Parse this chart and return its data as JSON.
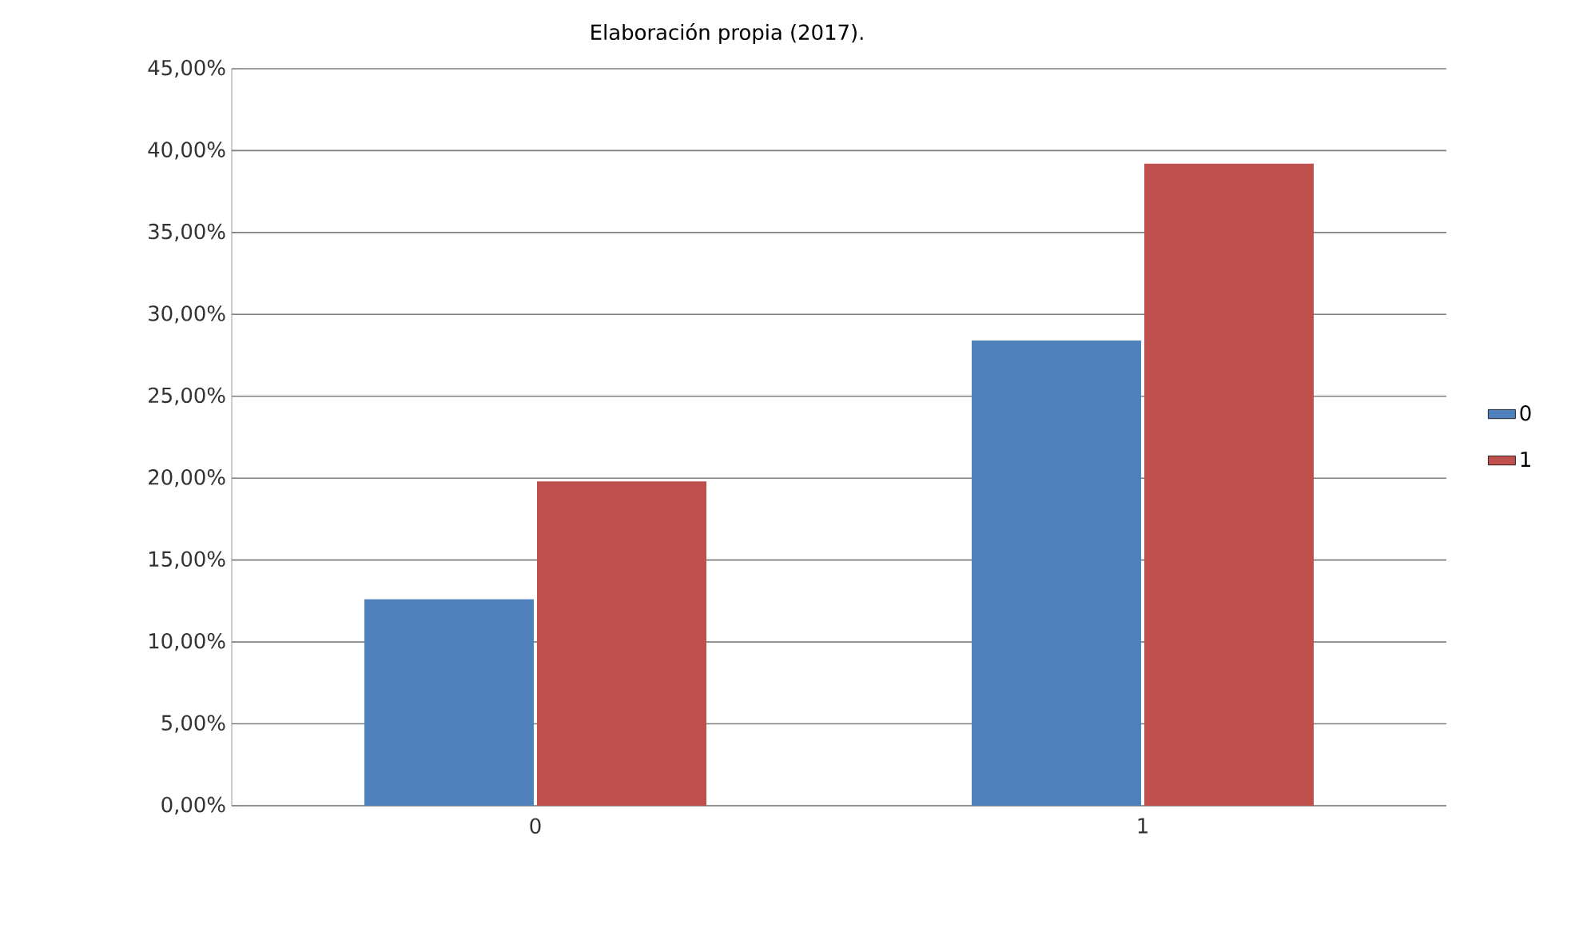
{
  "chart_data": {
    "type": "bar",
    "annotations": [
      "Elaboración propia (2017)."
    ],
    "categories": [
      "0",
      "1"
    ],
    "series": [
      {
        "name": "0",
        "color": "#4f81bd",
        "values": [
          12.6,
          28.4
        ]
      },
      {
        "name": "1",
        "color": "#c0504d",
        "values": [
          19.8,
          39.2
        ]
      }
    ],
    "ylim": [
      0,
      45
    ],
    "yticks": [
      {
        "value": 0,
        "label": "0,00%"
      },
      {
        "value": 5,
        "label": "5,00%"
      },
      {
        "value": 10,
        "label": "10,00%"
      },
      {
        "value": 15,
        "label": "15,00%"
      },
      {
        "value": 20,
        "label": "20,00%"
      },
      {
        "value": 25,
        "label": "25,00%"
      },
      {
        "value": 30,
        "label": "30,00%"
      },
      {
        "value": 35,
        "label": "35,00%"
      },
      {
        "value": 40,
        "label": "40,00%"
      },
      {
        "value": 45,
        "label": "45,00%"
      }
    ],
    "grid": "y",
    "legend": "right"
  }
}
